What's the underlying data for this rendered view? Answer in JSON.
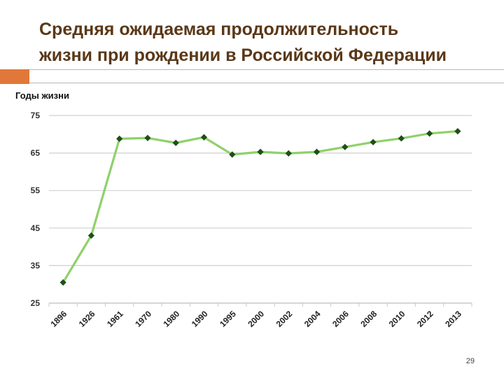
{
  "slide": {
    "title_line1": "Средняя ожидаемая продолжительность",
    "title_line2": "жизни при рождении в Российской Федерации",
    "page_number": "29"
  },
  "colors": {
    "title": "#5a3818",
    "accent": "#e2773a",
    "line": "#8fd16a",
    "marker": "#1f4f1a",
    "grid": "#d0d0d0"
  },
  "chart_data": {
    "type": "line",
    "title": "",
    "ylabel": "Годы жизни",
    "xlabel": "",
    "ylim": [
      25,
      75
    ],
    "yticks": [
      25,
      35,
      45,
      55,
      65,
      75
    ],
    "grid": true,
    "legend": "none",
    "categories": [
      "1896",
      "1926",
      "1961",
      "1970",
      "1980",
      "1990",
      "1995",
      "2000",
      "2002",
      "2004",
      "2006",
      "2008",
      "2010",
      "2012",
      "2013"
    ],
    "series": [
      {
        "values": [
          30.5,
          43,
          68.8,
          69,
          67.7,
          69.2,
          64.6,
          65.3,
          64.9,
          65.3,
          66.6,
          67.9,
          68.9,
          70.2,
          70.8
        ]
      }
    ]
  }
}
